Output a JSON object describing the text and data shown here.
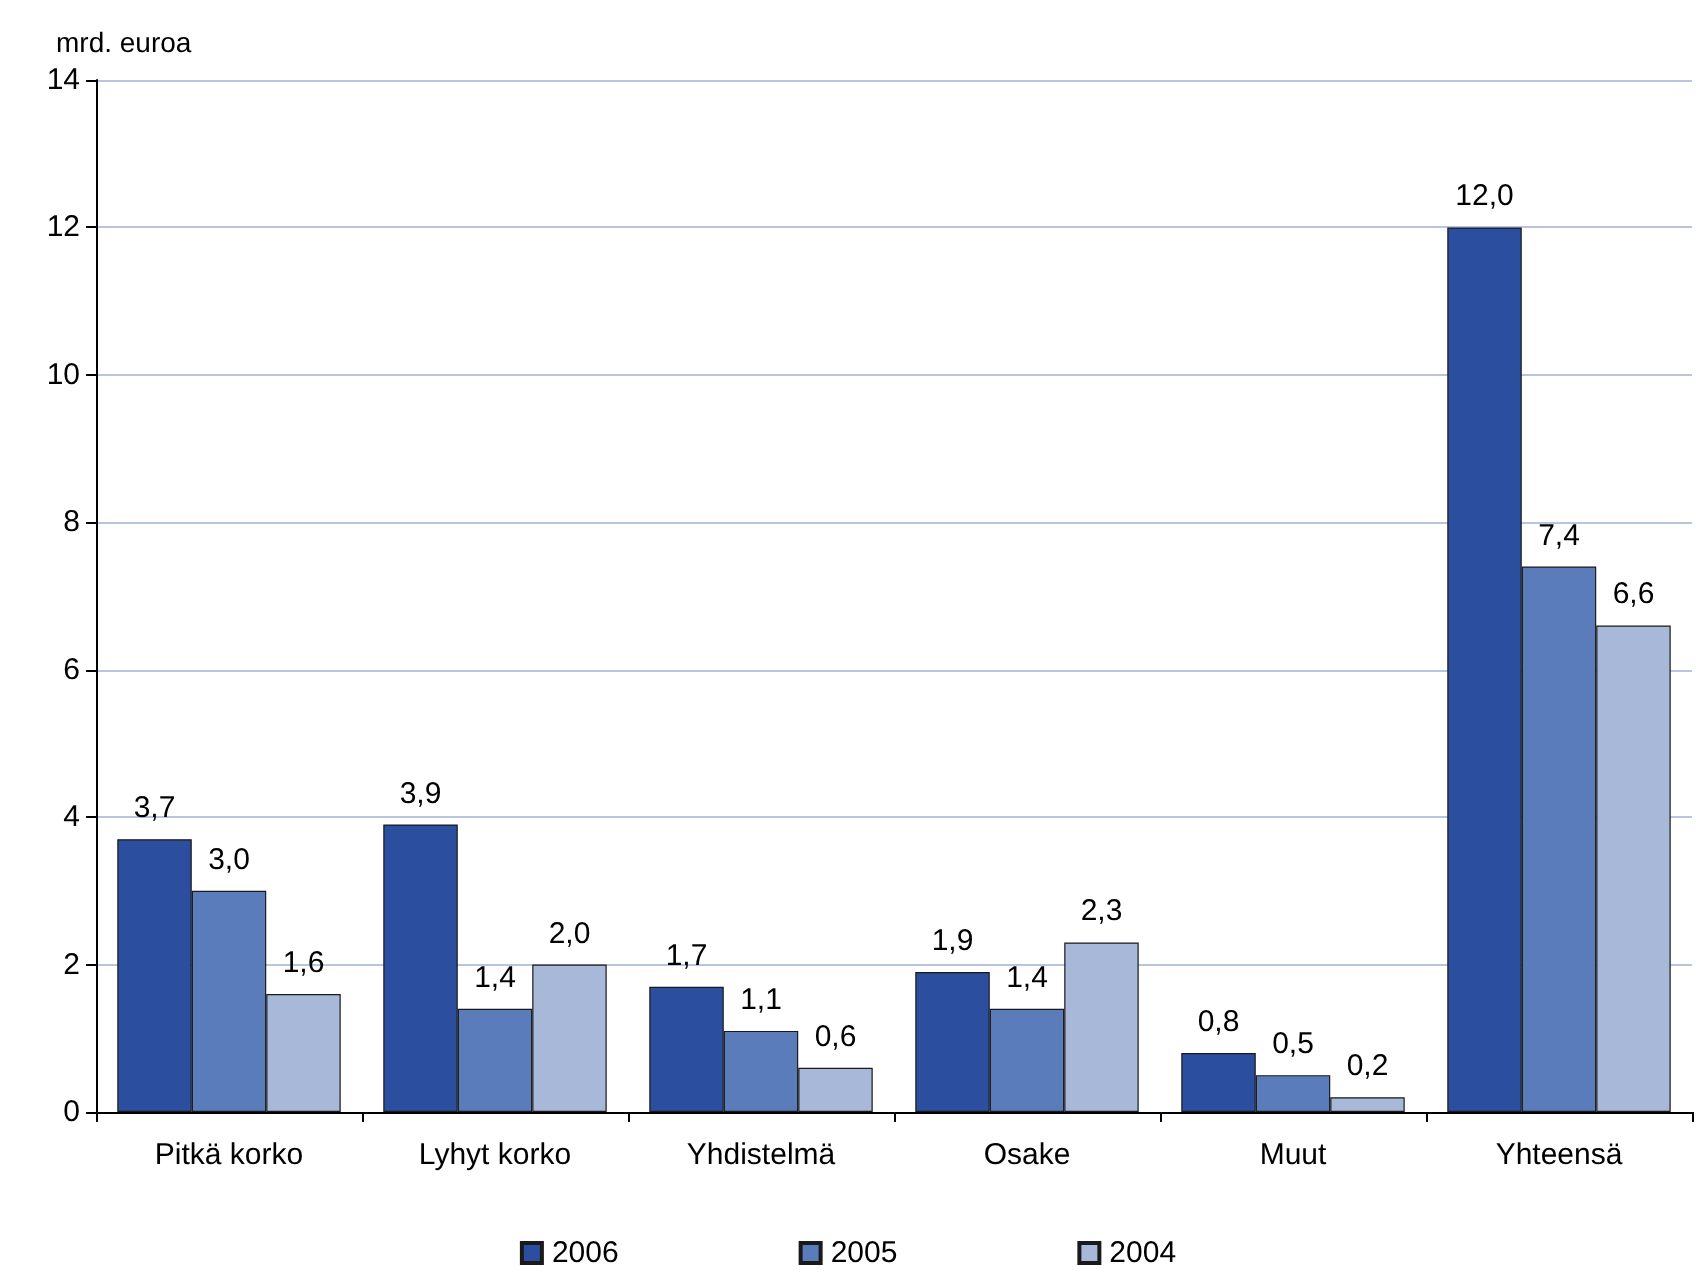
{
  "chart_data": {
    "type": "bar",
    "ylabel": "mrd. euroa",
    "categories": [
      "Pitkä korko",
      "Lyhyt korko",
      "Yhdistelmä",
      "Osake",
      "Muut",
      "Yhteensä"
    ],
    "series": [
      {
        "name": "2006",
        "color": "#2b4f9e",
        "values": [
          3.7,
          3.9,
          1.7,
          1.9,
          0.8,
          12.0
        ],
        "value_labels": [
          "3,7",
          "3,9",
          "1,7",
          "1,9",
          "0,8",
          "12,0"
        ]
      },
      {
        "name": "2005",
        "color": "#5b7cbb",
        "values": [
          3.0,
          1.4,
          1.1,
          1.4,
          0.5,
          7.4
        ],
        "value_labels": [
          "3,0",
          "1,4",
          "1,1",
          "1,4",
          "0,5",
          "7,4"
        ]
      },
      {
        "name": "2004",
        "color": "#a7b8d8",
        "values": [
          1.6,
          2.0,
          0.6,
          2.3,
          0.2,
          6.6
        ],
        "value_labels": [
          "1,6",
          "2,0",
          "0,6",
          "2,3",
          "0,2",
          "6,6"
        ]
      }
    ],
    "ylim": [
      0,
      14
    ],
    "yticks": [
      0,
      2,
      4,
      6,
      8,
      10,
      12,
      14
    ],
    "grid": "y",
    "legend": "bottom"
  }
}
